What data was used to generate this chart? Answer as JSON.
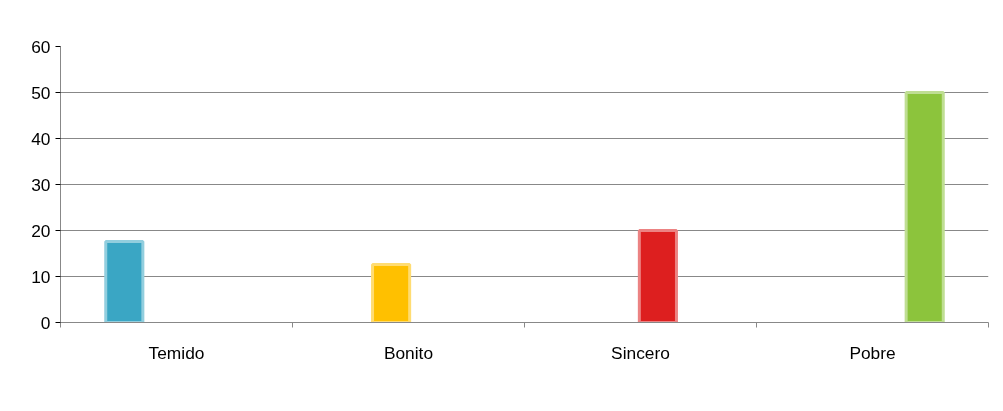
{
  "chart_data": {
    "type": "bar",
    "categories": [
      "Temido",
      "Bonito",
      "Sincero",
      "Pobre"
    ],
    "series": [
      {
        "color": "#3aa6c4",
        "values": [
          17.6,
          null,
          null,
          null
        ]
      },
      {
        "color": "#ffc000",
        "values": [
          null,
          12.6,
          null,
          null
        ]
      },
      {
        "color": "#dd1f1f",
        "values": [
          null,
          null,
          20,
          null
        ]
      },
      {
        "color": "#8cc43c",
        "values": [
          null,
          null,
          null,
          50
        ]
      }
    ],
    "ylim": [
      0,
      60
    ],
    "yticks": [
      0,
      10,
      20,
      30,
      40,
      50,
      60
    ],
    "grid": "y"
  }
}
